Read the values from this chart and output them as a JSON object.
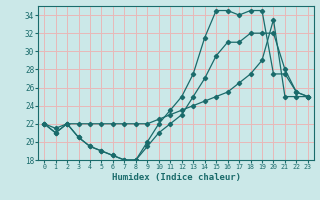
{
  "xlabel": "Humidex (Indice chaleur)",
  "bg_color": "#cbe8e8",
  "grid_color": "#e8b8b8",
  "line_color": "#1a6b6b",
  "xlim": [
    -0.5,
    23.5
  ],
  "ylim": [
    18,
    35
  ],
  "xticks": [
    0,
    1,
    2,
    3,
    4,
    5,
    6,
    7,
    8,
    9,
    10,
    11,
    12,
    13,
    14,
    15,
    16,
    17,
    18,
    19,
    20,
    21,
    22,
    23
  ],
  "yticks": [
    18,
    20,
    22,
    24,
    26,
    28,
    30,
    32,
    34
  ],
  "line1_x": [
    0,
    1,
    2,
    3,
    4,
    5,
    6,
    7,
    8,
    9,
    10,
    11,
    12,
    13,
    14,
    15,
    16,
    17,
    18,
    19,
    20,
    21,
    22,
    23
  ],
  "line1_y": [
    22,
    21,
    22,
    20.5,
    19.5,
    19,
    18.5,
    18,
    18,
    19.5,
    21,
    22,
    23,
    25,
    27,
    29.5,
    31,
    31,
    32,
    32,
    32,
    28,
    25.5,
    25
  ],
  "line2_x": [
    0,
    1,
    2,
    3,
    4,
    5,
    6,
    7,
    8,
    9,
    10,
    11,
    12,
    13,
    14,
    15,
    16,
    17,
    18,
    19,
    20,
    21,
    22,
    23
  ],
  "line2_y": [
    22,
    21,
    22,
    20.5,
    19.5,
    19,
    18.5,
    18,
    18,
    20,
    22,
    23.5,
    25,
    27.5,
    31.5,
    34.5,
    34.5,
    34,
    34.5,
    34.5,
    27.5,
    27.5,
    25.5,
    25
  ],
  "line3_x": [
    0,
    1,
    2,
    3,
    4,
    5,
    6,
    7,
    8,
    9,
    10,
    11,
    12,
    13,
    14,
    15,
    16,
    17,
    18,
    19,
    20,
    21,
    22,
    23
  ],
  "line3_y": [
    22,
    21.5,
    22,
    22,
    22,
    22,
    22,
    22,
    22,
    22,
    22.5,
    23,
    23.5,
    24,
    24.5,
    25,
    25.5,
    26.5,
    27.5,
    29,
    33.5,
    25,
    25,
    25
  ]
}
